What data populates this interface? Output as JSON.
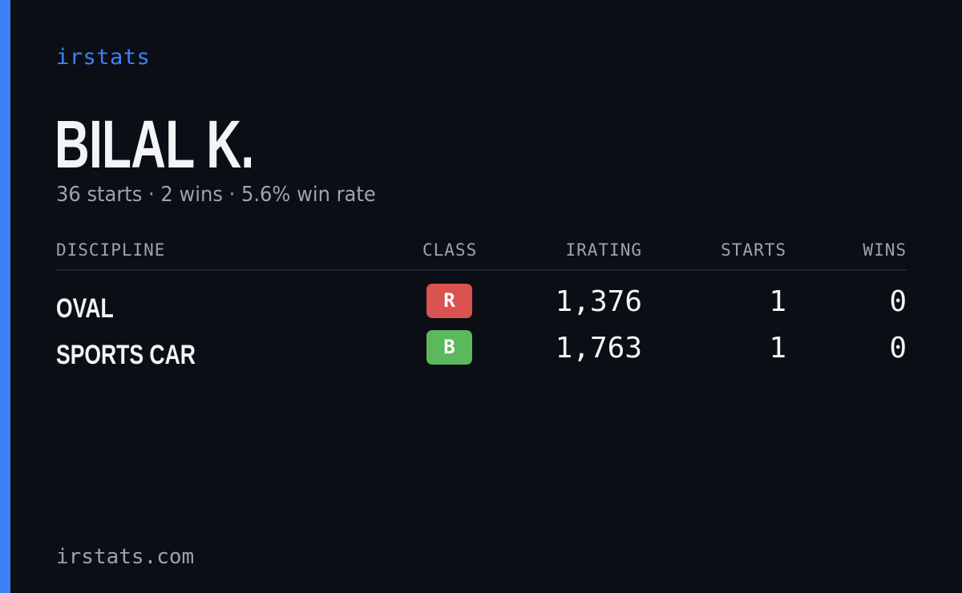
{
  "brand": "irstats",
  "driver": {
    "name": "BILAL K.",
    "summary": "36 starts · 2 wins · 5.6% win rate"
  },
  "table": {
    "headers": {
      "discipline": "DISCIPLINE",
      "class": "CLASS",
      "irating": "IRATING",
      "starts": "STARTS",
      "wins": "WINS"
    },
    "rows": [
      {
        "discipline": "OVAL",
        "class": "R",
        "class_color": "#d9534f",
        "irating": "1,376",
        "starts": "1",
        "wins": "0"
      },
      {
        "discipline": "SPORTS CAR",
        "class": "B",
        "class_color": "#5cb85c",
        "irating": "1,763",
        "starts": "1",
        "wins": "0"
      }
    ]
  },
  "footer": "irstats.com",
  "colors": {
    "accent": "#3b82f6",
    "background": "#0b0e14",
    "text": "#f3f4f6",
    "muted": "#9ca3af"
  }
}
